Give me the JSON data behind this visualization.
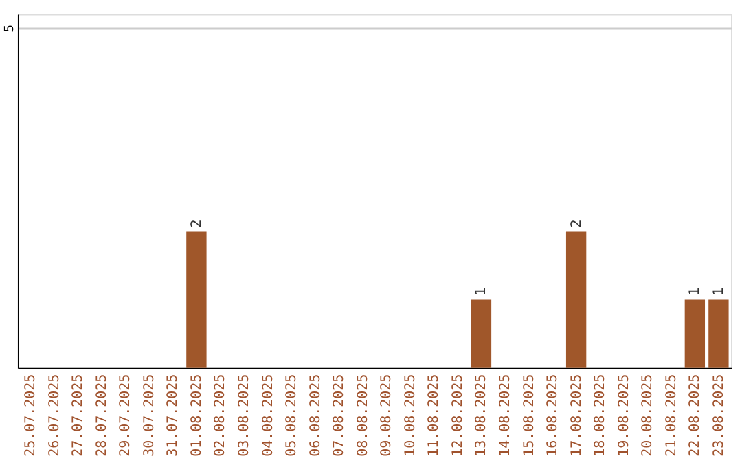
{
  "chart_data": {
    "type": "bar",
    "categories": [
      "25.07.2025",
      "26.07.2025",
      "27.07.2025",
      "28.07.2025",
      "29.07.2025",
      "30.07.2025",
      "31.07.2025",
      "01.08.2025",
      "02.08.2025",
      "03.08.2025",
      "04.08.2025",
      "05.08.2025",
      "06.08.2025",
      "07.08.2025",
      "08.08.2025",
      "09.08.2025",
      "10.08.2025",
      "11.08.2025",
      "12.08.2025",
      "13.08.2025",
      "14.08.2025",
      "15.08.2025",
      "16.08.2025",
      "17.08.2025",
      "18.08.2025",
      "19.08.2025",
      "20.08.2025",
      "21.08.2025",
      "22.08.2025",
      "23.08.2025"
    ],
    "values": [
      0,
      0,
      0,
      0,
      0,
      0,
      0,
      2,
      0,
      0,
      0,
      0,
      0,
      0,
      0,
      0,
      0,
      0,
      0,
      1,
      0,
      0,
      0,
      2,
      0,
      0,
      0,
      0,
      1,
      1
    ],
    "value_labels": [
      null,
      null,
      null,
      null,
      null,
      null,
      null,
      "2",
      null,
      null,
      null,
      null,
      null,
      null,
      null,
      null,
      null,
      null,
      null,
      "1",
      null,
      null,
      null,
      "2",
      null,
      null,
      null,
      null,
      "1",
      "1"
    ],
    "color": "#a0572a",
    "ylim": [
      0,
      5.2
    ],
    "yticks": [
      5
    ],
    "grid": "y"
  }
}
